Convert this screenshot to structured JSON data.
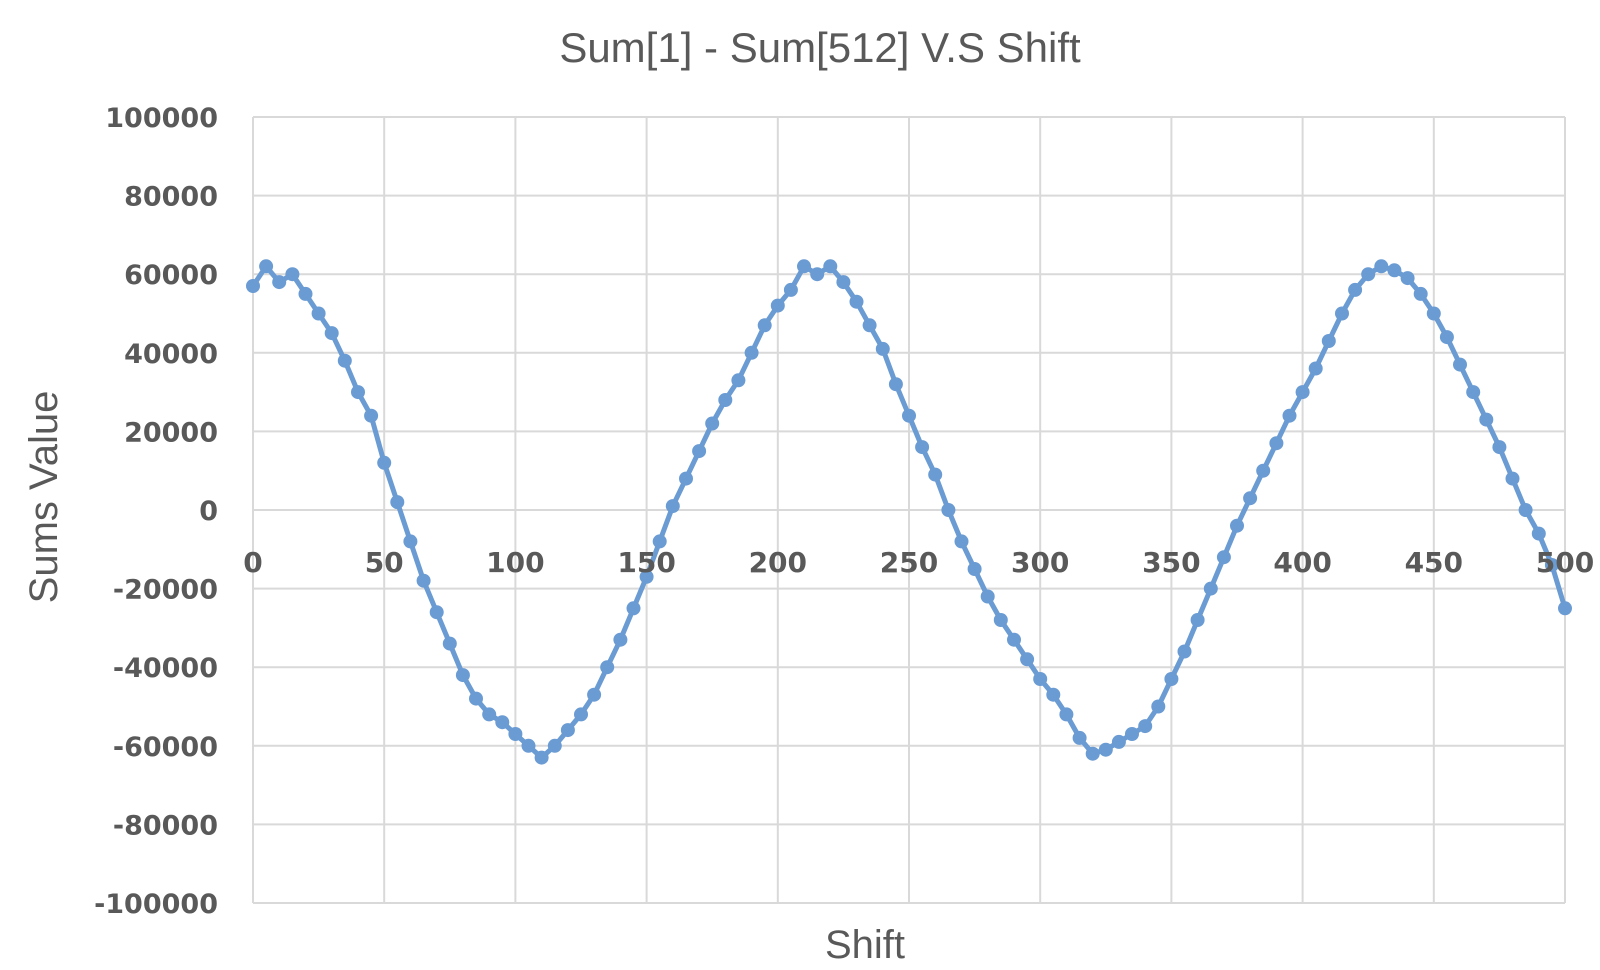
{
  "chart_data": {
    "type": "line",
    "title": "Sum[1] - Sum[512] V.S Shift",
    "xlabel": "Shift",
    "ylabel": "Sums Value",
    "xlim": [
      0,
      500
    ],
    "ylim": [
      -100000,
      100000
    ],
    "x_ticks": [
      "0",
      "50",
      "100",
      "150",
      "200",
      "250",
      "300",
      "350",
      "400",
      "450",
      "500"
    ],
    "y_ticks": [
      "100000",
      "80000",
      "60000",
      "40000",
      "20000",
      "0",
      "-20000",
      "-40000",
      "-60000",
      "-80000",
      "-100000"
    ],
    "grid": true,
    "marker": "circle",
    "series": [
      {
        "color": "#6a9bd3",
        "x": [
          0,
          5,
          10,
          15,
          20,
          25,
          30,
          35,
          40,
          45,
          50,
          55,
          60,
          65,
          70,
          75,
          80,
          85,
          90,
          95,
          100,
          105,
          110,
          115,
          120,
          125,
          130,
          135,
          140,
          145,
          150,
          155,
          160,
          165,
          170,
          175,
          180,
          185,
          190,
          195,
          200,
          205,
          210,
          215,
          220,
          225,
          230,
          235,
          240,
          245,
          250,
          255,
          260,
          265,
          270,
          275,
          280,
          285,
          290,
          295,
          300,
          305,
          310,
          315,
          320,
          325,
          330,
          335,
          340,
          345,
          350,
          355,
          360,
          365,
          370,
          375,
          380,
          385,
          390,
          395,
          400,
          405,
          410,
          415,
          420,
          425,
          430,
          435,
          440,
          445,
          450,
          455,
          460,
          465,
          470,
          475,
          480,
          485,
          490,
          495,
          500
        ],
        "values": [
          57000,
          62000,
          58000,
          60000,
          55000,
          50000,
          45000,
          38000,
          30000,
          24000,
          12000,
          2000,
          -8000,
          -18000,
          -26000,
          -34000,
          -42000,
          -48000,
          -52000,
          -54000,
          -57000,
          -60000,
          -63000,
          -60000,
          -56000,
          -52000,
          -47000,
          -40000,
          -33000,
          -25000,
          -17000,
          -8000,
          1000,
          8000,
          15000,
          22000,
          28000,
          33000,
          40000,
          47000,
          52000,
          56000,
          62000,
          60000,
          62000,
          58000,
          53000,
          47000,
          41000,
          32000,
          24000,
          16000,
          9000,
          0,
          -8000,
          -15000,
          -22000,
          -28000,
          -33000,
          -38000,
          -43000,
          -47000,
          -52000,
          -58000,
          -62000,
          -61000,
          -59000,
          -57000,
          -55000,
          -50000,
          -43000,
          -36000,
          -28000,
          -20000,
          -12000,
          -4000,
          3000,
          10000,
          17000,
          24000,
          30000,
          36000,
          43000,
          50000,
          56000,
          60000,
          62000,
          61000,
          59000,
          55000,
          50000,
          44000,
          37000,
          30000,
          23000,
          16000,
          8000,
          0,
          -6000,
          -14000,
          -25000
        ]
      }
    ]
  }
}
